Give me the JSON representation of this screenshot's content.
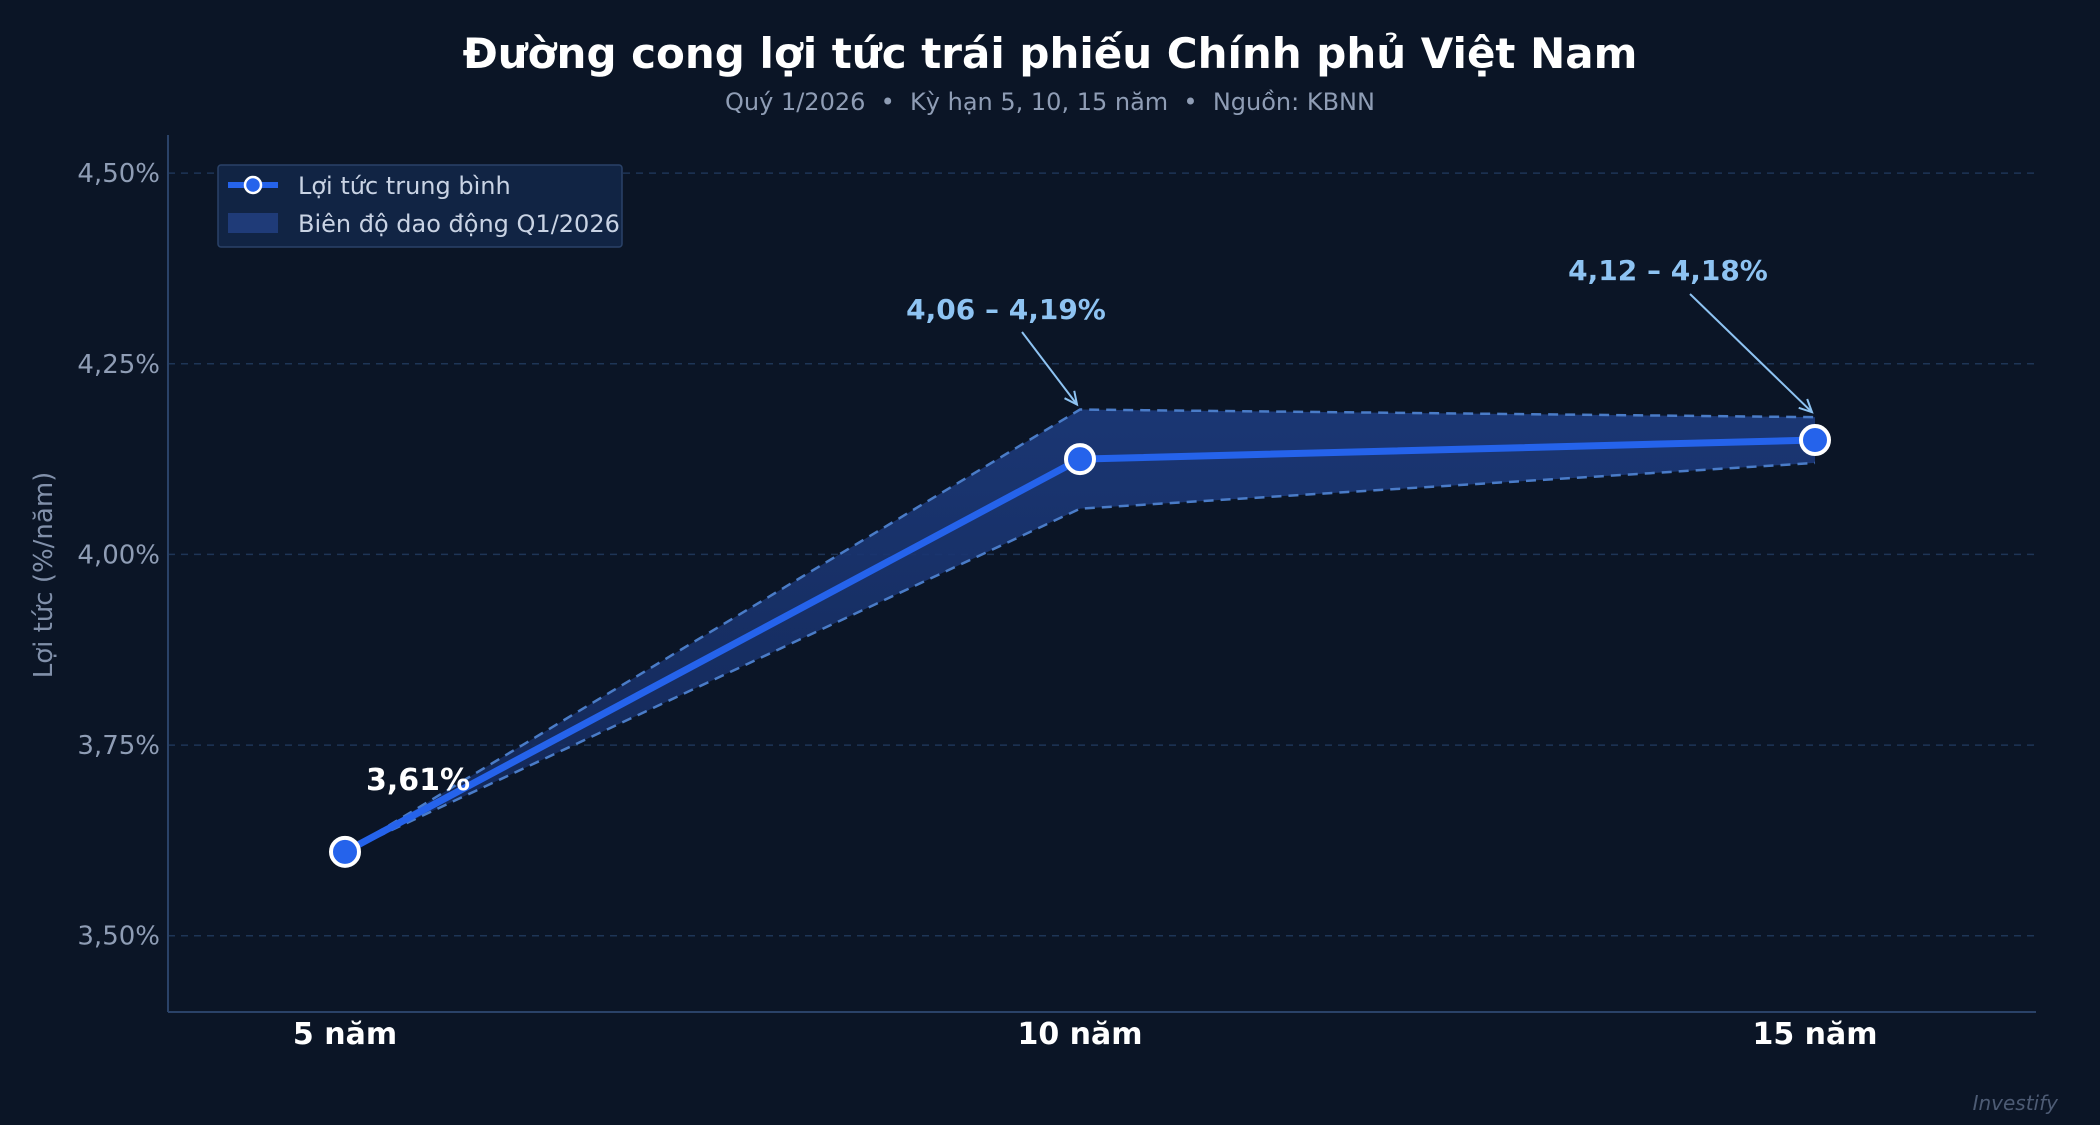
{
  "chart_data": {
    "type": "line",
    "title": "Đường cong lợi tức trái phiếu Chính phủ Việt Nam",
    "subtitle": "Quý 1/2026  •  Kỳ hạn 5, 10, 15 năm  •  Nguồn: KBNN",
    "ylabel": "Lợi tức (%/năm)",
    "xlabel": "",
    "categories": [
      "5 năm",
      "10 năm",
      "15 năm"
    ],
    "series": [
      {
        "name": "Lợi tức trung bình",
        "values": [
          3.61,
          4.125,
          4.15
        ]
      }
    ],
    "band": {
      "name": "Biên độ dao động Q1/2026",
      "low": [
        3.61,
        4.06,
        4.12
      ],
      "high": [
        3.61,
        4.19,
        4.18
      ]
    },
    "ylim": [
      3.4,
      4.55
    ],
    "yticks": [
      3.5,
      3.75,
      4.0,
      4.25,
      4.5
    ],
    "ytick_labels": [
      "3,50%",
      "3,75%",
      "4,00%",
      "4,25%",
      "4,50%"
    ],
    "annotations": [
      {
        "text": "3,61%",
        "index": 0,
        "style": "white"
      },
      {
        "text": "4,06 – 4,19%",
        "index": 1,
        "style": "range"
      },
      {
        "text": "4,12 – 4,18%",
        "index": 2,
        "style": "range"
      }
    ],
    "grid": true,
    "legend": "top-left",
    "colors": {
      "background": "#0b1526",
      "line": "#2563eb",
      "band": "#1a3470",
      "band_edge": "#4a7cc8",
      "annotation": "#8ec3f2",
      "grid": "#1e3556"
    }
  },
  "watermark": "Investify"
}
